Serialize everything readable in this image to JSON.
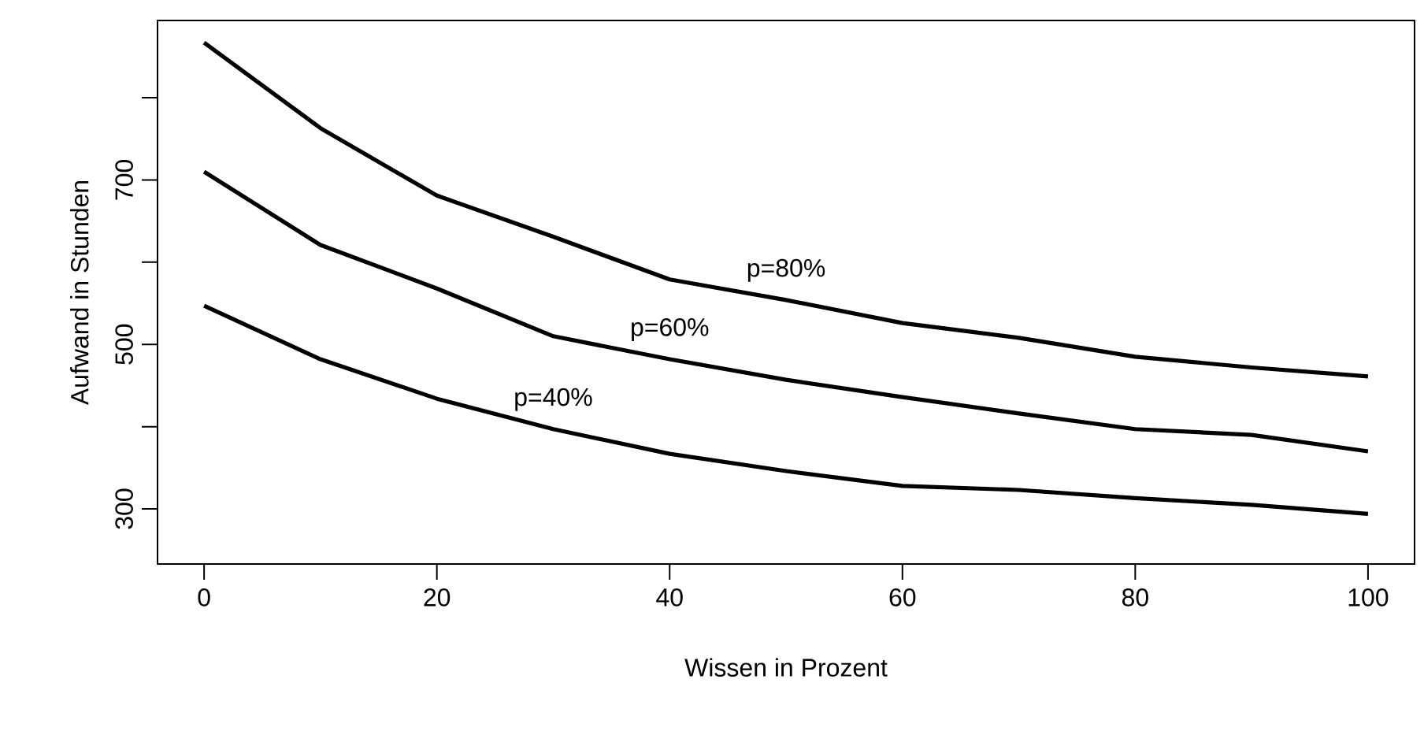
{
  "chart_data": {
    "type": "line",
    "xlabel": "Wissen in Prozent",
    "ylabel": "Aufwand in Stunden",
    "x": [
      0,
      10,
      20,
      30,
      40,
      50,
      60,
      70,
      80,
      90,
      100
    ],
    "series": [
      {
        "color": "#000000",
        "values": [
          867,
          763,
          681,
          631,
          579,
          554,
          526,
          508,
          485,
          472,
          461
        ]
      },
      {
        "color": "#000000",
        "values": [
          710,
          621,
          568,
          510,
          482,
          457,
          436,
          416,
          397,
          390,
          370
        ]
      },
      {
        "color": "#000000",
        "values": [
          547,
          482,
          434,
          397,
          367,
          346,
          328,
          323,
          313,
          305,
          294
        ]
      }
    ],
    "annotations": [
      "p=80%",
      "p=60%",
      "p=40%"
    ],
    "xlim": [
      -4,
      104
    ],
    "ylim": [
      233,
      894
    ],
    "xticks": [
      0,
      20,
      40,
      60,
      80,
      100
    ],
    "yticks": [
      300,
      {
        "value": 400,
        "label": null
      },
      500,
      {
        "value": 600,
        "label": null
      },
      700,
      {
        "value": 800,
        "label": null
      }
    ],
    "grid": false,
    "legend": false,
    "marker": "none",
    "line_style": "solid"
  }
}
